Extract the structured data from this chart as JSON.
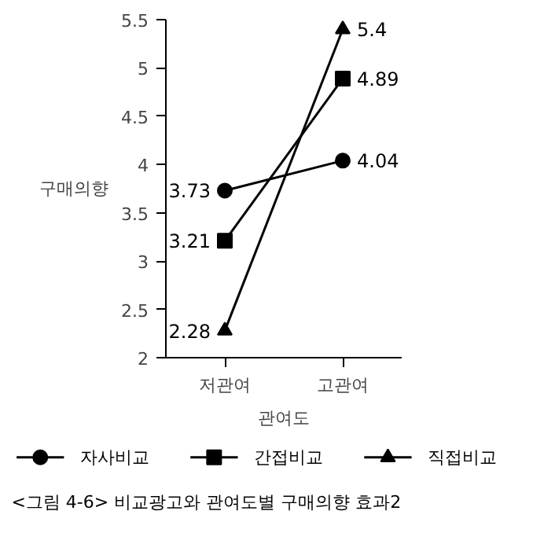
{
  "chart_data": {
    "type": "line",
    "categories": [
      "저관여",
      "고관여"
    ],
    "xlabel": "관여도",
    "ylabel": "구매의향",
    "ylim": [
      2,
      5.5
    ],
    "yticks": [
      2,
      2.5,
      3,
      3.5,
      4,
      4.5,
      5,
      5.5
    ],
    "series": [
      {
        "name": "자사비교",
        "color": "#000000",
        "marker": "circle",
        "values": [
          3.73,
          4.04
        ]
      },
      {
        "name": "간접비교",
        "color": "#000000",
        "marker": "square",
        "values": [
          3.21,
          4.89
        ]
      },
      {
        "name": "직접비교",
        "color": "#000000",
        "marker": "triangle",
        "values": [
          2.28,
          5.4
        ]
      }
    ],
    "data_labels": true,
    "grid": false,
    "legend": "bottom",
    "line_style": "solid",
    "annotations": [
      "<그림 4-6> 비교광고와 관여도별 구매의향 효과2"
    ]
  }
}
